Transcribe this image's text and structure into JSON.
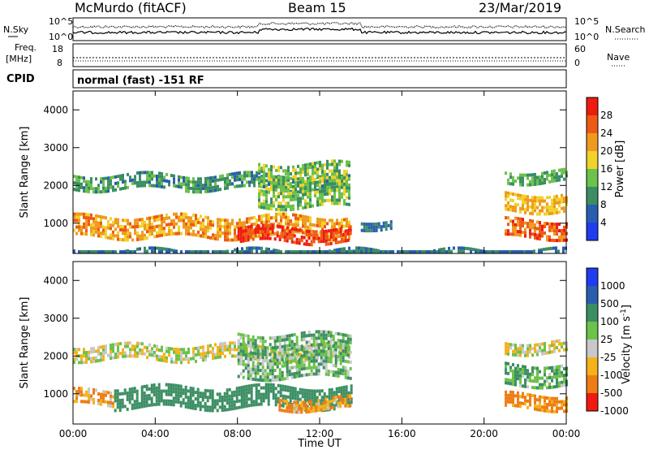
{
  "header": {
    "station": "McMurdo (fitACF)",
    "beam": "Beam 15",
    "date": "23/Mar/2019"
  },
  "noise_panel": {
    "left_label": "N.Sky",
    "right_label": "N.Search",
    "ticks_left": [
      "10^5",
      "10^0"
    ],
    "ticks_right": [
      "10^5",
      "10^0"
    ]
  },
  "freq_panel": {
    "left_label_1": "Freq.",
    "left_label_2": "[MHz]",
    "right_label": "Nave",
    "ticks_left": [
      "18",
      "8"
    ],
    "ticks_right": [
      "60",
      "0"
    ]
  },
  "cpid_panel": {
    "label": "CPID",
    "text": "normal (fast) -151 RF"
  },
  "x_axis": {
    "ticks": [
      "00:00",
      "04:00",
      "08:00",
      "12:00",
      "16:00",
      "20:00",
      "00:00"
    ],
    "label": "Time UT"
  },
  "y_axis": {
    "label": "Slant Range [km]",
    "ticks": [
      "1000",
      "2000",
      "3000",
      "4000"
    ]
  },
  "chart_data": [
    {
      "type": "heatmap",
      "quantity": "Power",
      "colorbar_label": "Power [dB]",
      "colorbar_ticks": [
        "4",
        "8",
        "12",
        "16",
        "20",
        "24",
        "28"
      ],
      "colorscale": [
        "#1f3cf0",
        "#2a5db0",
        "#3b8e63",
        "#6cc24a",
        "#f0d22a",
        "#ef9a1e",
        "#ee5a14",
        "#ef1a10"
      ],
      "ylim": [
        200,
        4500
      ],
      "xlim": [
        "00:00",
        "24:00"
      ],
      "echo_bands": [
        {
          "t_start": 0.0,
          "t_end": 13.5,
          "range_km": [
            600,
            1200
          ],
          "value": 22
        },
        {
          "t_start": 8.0,
          "t_end": 13.5,
          "range_km": [
            500,
            900
          ],
          "value": 28
        },
        {
          "t_start": 0.0,
          "t_end": 13.5,
          "range_km": [
            1950,
            2300
          ],
          "value": 10
        },
        {
          "t_start": 9.0,
          "t_end": 13.5,
          "range_km": [
            1400,
            2600
          ],
          "value": 14
        },
        {
          "t_start": 14.0,
          "t_end": 15.5,
          "range_km": [
            900,
            1100
          ],
          "value": 8
        },
        {
          "t_start": 21.0,
          "t_end": 24.0,
          "range_km": [
            600,
            1100
          ],
          "value": 26
        },
        {
          "t_start": 21.0,
          "t_end": 24.0,
          "range_km": [
            1300,
            1800
          ],
          "value": 20
        },
        {
          "t_start": 21.0,
          "t_end": 24.0,
          "range_km": [
            2100,
            2400
          ],
          "value": 12
        },
        {
          "t_start": 0.0,
          "t_end": 24.0,
          "range_km": [
            200,
            300
          ],
          "value": 8
        }
      ]
    },
    {
      "type": "heatmap",
      "quantity": "Velocity",
      "colorbar_label": "Velocity [m s^-1]",
      "colorbar_ticks": [
        "1000",
        "500",
        "100",
        "25",
        "-25",
        "-100",
        "-500",
        "-1000"
      ],
      "colorscale": [
        "#1f3cf0",
        "#2a5db0",
        "#3b8e63",
        "#6cc24a",
        "#c8c8c8",
        "#f5b21a",
        "#ef7d16",
        "#ef1a10"
      ],
      "ylim": [
        200,
        4500
      ],
      "xlim": [
        "00:00",
        "24:00"
      ],
      "echo_bands": [
        {
          "t_start": 0.0,
          "t_end": 2.0,
          "range_km": [
            700,
            1100
          ],
          "value": -100
        },
        {
          "t_start": 2.0,
          "t_end": 13.5,
          "range_km": [
            600,
            1200
          ],
          "value": 300
        },
        {
          "t_start": 10.0,
          "t_end": 13.5,
          "range_km": [
            600,
            900
          ],
          "value": -100
        },
        {
          "t_start": 0.0,
          "t_end": 13.5,
          "range_km": [
            1950,
            2300
          ],
          "value": 0
        },
        {
          "t_start": 8.0,
          "t_end": 13.5,
          "range_km": [
            1400,
            2600
          ],
          "value": 80
        },
        {
          "t_start": 21.0,
          "t_end": 24.0,
          "range_km": [
            600,
            1000
          ],
          "value": -150
        },
        {
          "t_start": 21.0,
          "t_end": 24.0,
          "range_km": [
            1200,
            1800
          ],
          "value": 100
        },
        {
          "t_start": 21.0,
          "t_end": 24.0,
          "range_km": [
            2100,
            2400
          ],
          "value": 0
        }
      ]
    }
  ]
}
